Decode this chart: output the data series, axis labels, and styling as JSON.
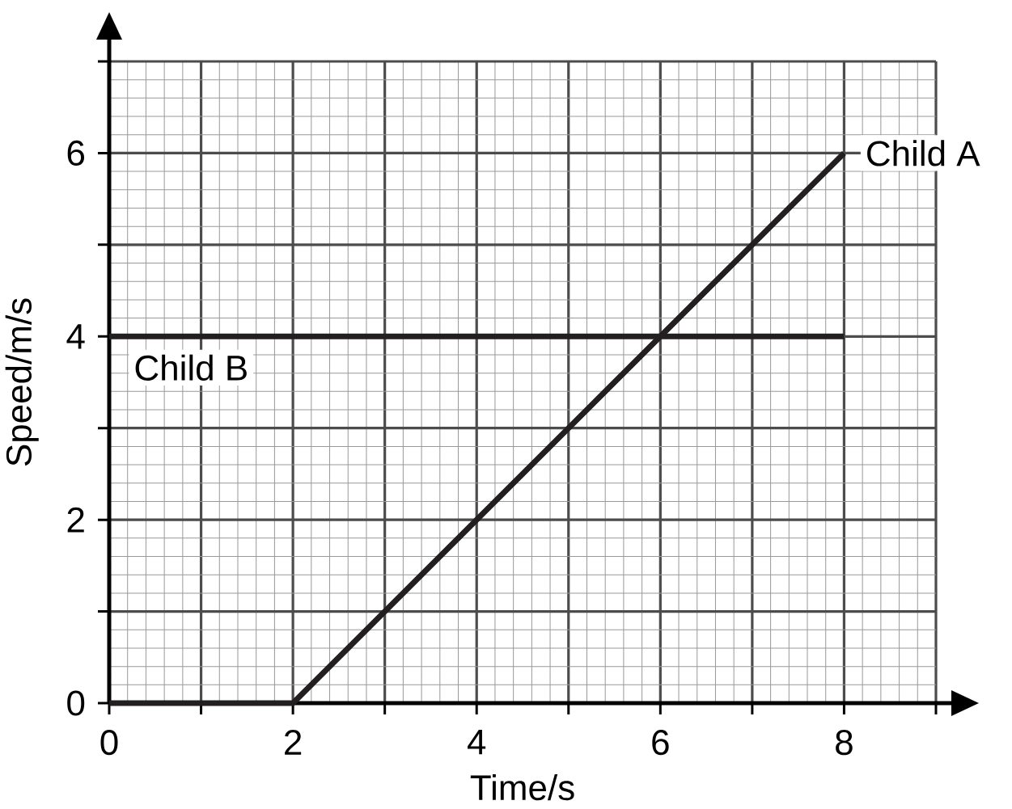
{
  "chart_data": {
    "type": "line",
    "xlabel": "Time/s",
    "ylabel": "Speed/m/s",
    "xlim": [
      0,
      9
    ],
    "ylim": [
      0,
      7
    ],
    "xticks": [
      0,
      {
        "value": 1,
        "label": null
      },
      2,
      {
        "value": 3,
        "label": null
      },
      4,
      {
        "value": 5,
        "label": null
      },
      6,
      {
        "value": 7,
        "label": null
      },
      8,
      {
        "value": 9,
        "label": null
      }
    ],
    "yticks": [
      0,
      {
        "value": 1,
        "label": null
      },
      2,
      {
        "value": 3,
        "label": null
      },
      4,
      {
        "value": 5,
        "label": null
      },
      6,
      {
        "value": 7,
        "label": null
      }
    ],
    "grid": true,
    "marker": "none",
    "line_style": "solid",
    "series": [
      {
        "name": "Child A",
        "color": "#231f20",
        "x": [
          0,
          2,
          8
        ],
        "values": [
          0,
          0,
          6
        ]
      },
      {
        "name": "Child B",
        "color": "#231f20",
        "x": [
          0,
          8
        ],
        "values": [
          4,
          4
        ]
      }
    ]
  }
}
